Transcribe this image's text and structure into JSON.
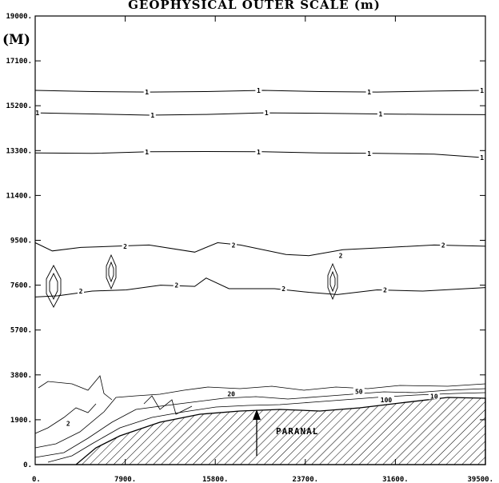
{
  "chart_data": {
    "type": "contour",
    "title": "GEOPHYSICAL  OUTER  SCALE  (m)",
    "ylabel": "(M)",
    "xlabel": "",
    "xlim": [
      0,
      39500
    ],
    "ylim": [
      0,
      19000
    ],
    "x_ticks": [
      "0.",
      "7900.",
      "15800.",
      "23700.",
      "31600.",
      "39500."
    ],
    "y_ticks": [
      "0.",
      "1900.",
      "3800.",
      "5700.",
      "7600.",
      "9500.",
      "11400.",
      "13300.",
      "15200.",
      "17100.",
      "19000."
    ],
    "annotation": "PARANAL",
    "contours": [
      {
        "level": "1",
        "points": [
          [
            0,
            15850
          ],
          [
            5000,
            15800
          ],
          [
            10000,
            15780
          ],
          [
            15000,
            15800
          ],
          [
            20000,
            15850
          ],
          [
            25000,
            15800
          ],
          [
            30000,
            15780
          ],
          [
            35000,
            15820
          ],
          [
            39500,
            15850
          ]
        ]
      },
      {
        "level": "1",
        "points": [
          [
            0,
            14900
          ],
          [
            5000,
            14850
          ],
          [
            10000,
            14800
          ],
          [
            15000,
            14830
          ],
          [
            20000,
            14900
          ],
          [
            25000,
            14880
          ],
          [
            30000,
            14850
          ],
          [
            35000,
            14830
          ],
          [
            39500,
            14820
          ]
        ]
      },
      {
        "level": "1",
        "points": [
          [
            0,
            13200
          ],
          [
            5000,
            13180
          ],
          [
            10000,
            13250
          ],
          [
            15000,
            13260
          ],
          [
            20000,
            13250
          ],
          [
            25000,
            13200
          ],
          [
            30000,
            13180
          ],
          [
            35000,
            13150
          ],
          [
            39500,
            13000
          ]
        ]
      },
      {
        "level": "2",
        "points": [
          [
            0,
            9400
          ],
          [
            1500,
            9050
          ],
          [
            4000,
            9200
          ],
          [
            7000,
            9250
          ],
          [
            10000,
            9300
          ],
          [
            14000,
            9000
          ],
          [
            16000,
            9400
          ],
          [
            18000,
            9300
          ],
          [
            22000,
            8900
          ],
          [
            24000,
            8850
          ],
          [
            27000,
            9100
          ],
          [
            31000,
            9200
          ],
          [
            35000,
            9300
          ],
          [
            39500,
            9250
          ]
        ]
      },
      {
        "level": "2",
        "points": [
          [
            0,
            7100
          ],
          [
            2000,
            7150
          ],
          [
            5000,
            7350
          ],
          [
            8000,
            7400
          ],
          [
            11000,
            7600
          ],
          [
            14000,
            7550
          ],
          [
            15000,
            7900
          ],
          [
            17000,
            7450
          ],
          [
            21000,
            7450
          ],
          [
            24000,
            7300
          ],
          [
            26500,
            7200
          ],
          [
            30000,
            7400
          ],
          [
            34000,
            7350
          ],
          [
            39500,
            7500
          ]
        ]
      }
    ],
    "contour_labels": [
      {
        "text": "1",
        "x": 9800,
        "y": 15780
      },
      {
        "text": "1",
        "x": 19600,
        "y": 15850
      },
      {
        "text": "1",
        "x": 29300,
        "y": 15780
      },
      {
        "text": "1",
        "x": 39200,
        "y": 15850
      },
      {
        "text": "1",
        "x": 200,
        "y": 14900
      },
      {
        "text": "1",
        "x": 10300,
        "y": 14800
      },
      {
        "text": "1",
        "x": 20300,
        "y": 14900
      },
      {
        "text": "1",
        "x": 30300,
        "y": 14850
      },
      {
        "text": "1",
        "x": 9800,
        "y": 13250
      },
      {
        "text": "1",
        "x": 19600,
        "y": 13250
      },
      {
        "text": "1",
        "x": 29300,
        "y": 13180
      },
      {
        "text": "1",
        "x": 39200,
        "y": 13000
      },
      {
        "text": "2",
        "x": 7900,
        "y": 9250
      },
      {
        "text": "2",
        "x": 17400,
        "y": 9300
      },
      {
        "text": "2",
        "x": 26800,
        "y": 8850
      },
      {
        "text": "2",
        "x": 35800,
        "y": 9300
      },
      {
        "text": "2",
        "x": 4000,
        "y": 7350
      },
      {
        "text": "2",
        "x": 12400,
        "y": 7600
      },
      {
        "text": "2",
        "x": 21800,
        "y": 7450
      },
      {
        "text": "2",
        "x": 30700,
        "y": 7400
      },
      {
        "text": "2",
        "x": 2900,
        "y": 1750
      },
      {
        "text": "20",
        "x": 17200,
        "y": 3000
      },
      {
        "text": "50",
        "x": 28400,
        "y": 3100
      },
      {
        "text": "100",
        "x": 30800,
        "y": 2750
      },
      {
        "text": "10",
        "x": 35000,
        "y": 2900
      }
    ]
  }
}
